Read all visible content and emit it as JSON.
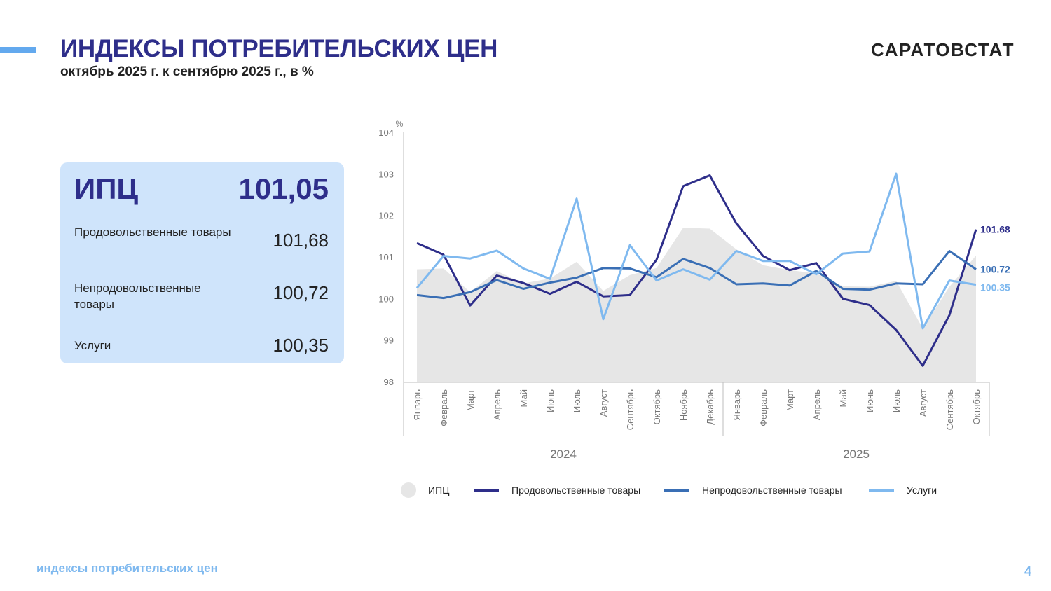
{
  "header": {
    "title": "ИНДЕКСЫ ПОТРЕБИТЕЛЬСКИХ ЦЕН",
    "subtitle": "октябрь 2025 г. к сентябрю 2025 г., в %",
    "brand": "САРАТОВСТАТ"
  },
  "summary": {
    "head_label": "ИПЦ",
    "head_value": "101,05",
    "rows": [
      {
        "label": "Продовольственные товары",
        "value": "101,68"
      },
      {
        "label": "Непродовольственные товары",
        "value": "100,72"
      },
      {
        "label": "Услуги",
        "value": "100,35"
      }
    ]
  },
  "footer": {
    "text": "индексы потребительских цен",
    "page": "4"
  },
  "colors": {
    "title": "#2e2e8a",
    "accent": "#63a9ee",
    "summary_bg": "#cfe4fb",
    "food": "#2e2e8a",
    "nonfood": "#3a6fb5",
    "services": "#7fb9ef",
    "cpi_area": "#e6e6e6"
  },
  "chart_data": {
    "type": "line",
    "y_unit": "%",
    "ylim": [
      98,
      104
    ],
    "yticks": [
      98,
      99,
      100,
      101,
      102,
      103,
      104
    ],
    "categories": [
      "Январь",
      "Февраль",
      "Март",
      "Апрель",
      "Май",
      "Июнь",
      "Июль",
      "Август",
      "Сентябрь",
      "Октябрь",
      "Ноябрь",
      "Декабрь",
      "Январь",
      "Февраль",
      "Март",
      "Апрель",
      "Май",
      "Июнь",
      "Июль",
      "Август",
      "Сентябрь",
      "Октябрь"
    ],
    "groups": [
      {
        "label": "2024",
        "count": 12
      },
      {
        "label": "2025",
        "count": 10
      }
    ],
    "legend_position": "bottom",
    "grid": false,
    "series": [
      {
        "name": "ИПЦ",
        "kind": "area",
        "color": "#e6e6e6",
        "values": [
          100.72,
          100.74,
          100.17,
          100.68,
          100.38,
          100.5,
          100.9,
          100.2,
          100.58,
          100.75,
          101.72,
          101.7,
          101.2,
          100.82,
          100.7,
          100.62,
          100.31,
          100.3,
          100.44,
          99.3,
          100.3,
          101.05
        ]
      },
      {
        "name": "Продовольственные товары",
        "kind": "line",
        "color": "#2e2e8a",
        "end_label": "101.68",
        "values": [
          101.35,
          101.07,
          99.85,
          100.57,
          100.39,
          100.13,
          100.42,
          100.07,
          100.1,
          100.95,
          102.72,
          102.98,
          101.82,
          101.04,
          100.7,
          100.87,
          100.01,
          99.86,
          99.26,
          98.4,
          99.62,
          101.68
        ]
      },
      {
        "name": "Непродовольственные товары",
        "kind": "line",
        "color": "#3a6fb5",
        "end_label": "100.72",
        "values": [
          100.1,
          100.03,
          100.17,
          100.46,
          100.25,
          100.4,
          100.52,
          100.75,
          100.74,
          100.53,
          100.97,
          100.75,
          100.36,
          100.38,
          100.33,
          100.68,
          100.25,
          100.23,
          100.38,
          100.36,
          101.16,
          100.72
        ]
      },
      {
        "name": "Услуги",
        "kind": "line",
        "color": "#7fb9ef",
        "end_label": "100.35",
        "values": [
          100.27,
          101.04,
          100.98,
          101.17,
          100.74,
          100.49,
          102.42,
          99.52,
          101.3,
          100.45,
          100.72,
          100.47,
          101.16,
          100.92,
          100.92,
          100.6,
          101.1,
          101.15,
          103.02,
          99.3,
          100.45,
          100.35
        ]
      }
    ]
  }
}
